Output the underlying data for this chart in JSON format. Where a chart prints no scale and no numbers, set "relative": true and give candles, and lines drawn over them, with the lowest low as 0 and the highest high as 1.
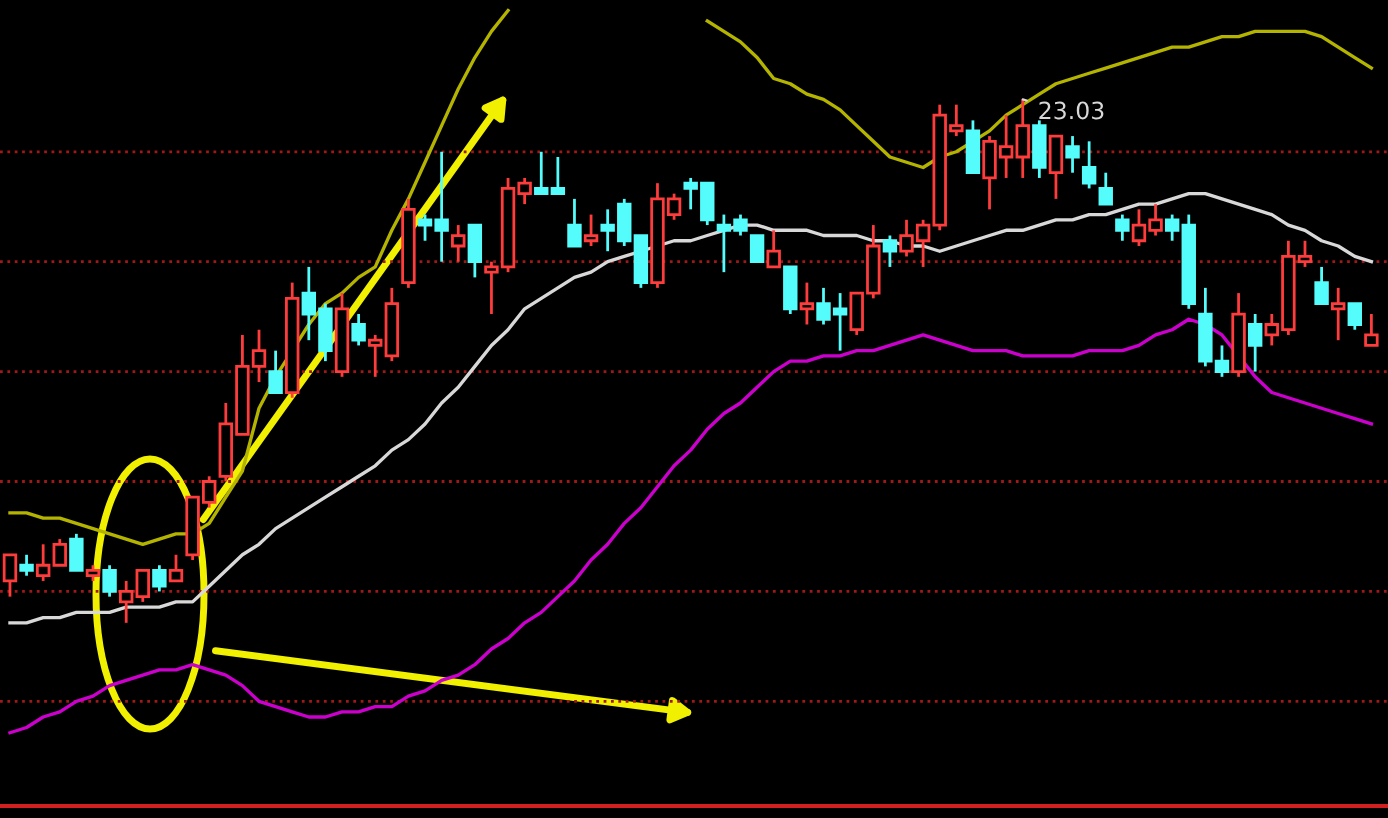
{
  "chart_data": {
    "type": "candlestick",
    "relative": true,
    "categories": [
      null,
      null,
      null,
      null,
      null,
      null,
      null,
      null,
      null,
      null,
      null,
      null,
      null,
      null,
      null,
      null,
      null,
      null,
      null,
      null,
      null,
      null,
      null,
      null,
      null,
      null,
      null,
      null,
      null,
      null,
      null,
      null,
      null,
      null,
      null,
      null,
      null,
      null,
      null,
      null,
      null,
      null,
      null,
      null,
      null,
      null,
      null,
      null,
      null,
      null,
      null,
      null,
      null,
      null,
      null,
      null,
      null,
      null,
      null,
      null,
      null,
      null,
      null,
      null,
      null,
      null,
      null,
      null,
      null,
      null,
      null,
      null,
      null,
      null,
      null,
      null,
      null,
      null,
      null,
      null,
      null,
      null,
      null
    ],
    "ohlc": [
      [
        0.08,
        0.13,
        0.05,
        0.13
      ],
      [
        0.11,
        0.13,
        0.09,
        0.1
      ],
      [
        0.09,
        0.15,
        0.08,
        0.11
      ],
      [
        0.11,
        0.16,
        0.11,
        0.15
      ],
      [
        0.16,
        0.17,
        0.1,
        0.1
      ],
      [
        0.09,
        0.11,
        0.08,
        0.1
      ],
      [
        0.1,
        0.11,
        0.05,
        0.06
      ],
      [
        0.04,
        0.08,
        0,
        0.06
      ],
      [
        0.05,
        0.1,
        0.04,
        0.1
      ],
      [
        0.1,
        0.11,
        0.06,
        0.07
      ],
      [
        0.08,
        0.13,
        0.08,
        0.1
      ],
      [
        0.13,
        0.24,
        0.12,
        0.24
      ],
      [
        0.23,
        0.28,
        0.22,
        0.27
      ],
      [
        0.28,
        0.42,
        0.27,
        0.38
      ],
      [
        0.36,
        0.55,
        0.36,
        0.49
      ],
      [
        0.49,
        0.56,
        0.46,
        0.52
      ],
      [
        0.48,
        0.52,
        0.44,
        0.44
      ],
      [
        0.44,
        0.65,
        0.43,
        0.62
      ],
      [
        0.63,
        0.68,
        0.54,
        0.59
      ],
      [
        0.6,
        0.61,
        0.5,
        0.52
      ],
      [
        0.48,
        0.63,
        0.47,
        0.6
      ],
      [
        0.57,
        0.59,
        0.53,
        0.54
      ],
      [
        0.53,
        0.55,
        0.47,
        0.54
      ],
      [
        0.51,
        0.64,
        0.5,
        0.61
      ],
      [
        0.65,
        0.81,
        0.64,
        0.79
      ],
      [
        0.77,
        0.78,
        0.73,
        0.76
      ],
      [
        0.77,
        0.9,
        0.69,
        0.75
      ],
      [
        0.72,
        0.76,
        0.69,
        0.74
      ],
      [
        0.76,
        0.76,
        0.66,
        0.69
      ],
      [
        0.67,
        0.69,
        0.59,
        0.68
      ],
      [
        0.68,
        0.85,
        0.67,
        0.83
      ],
      [
        0.82,
        0.85,
        0.8,
        0.84
      ],
      [
        0.83,
        0.9,
        0.82,
        0.82
      ],
      [
        0.83,
        0.89,
        0.82,
        0.82
      ],
      [
        0.76,
        0.81,
        0.72,
        0.72
      ],
      [
        0.73,
        0.78,
        0.72,
        0.74
      ],
      [
        0.76,
        0.79,
        0.71,
        0.75
      ],
      [
        0.8,
        0.81,
        0.72,
        0.73
      ],
      [
        0.74,
        0.74,
        0.64,
        0.65
      ],
      [
        0.65,
        0.84,
        0.64,
        0.81
      ],
      [
        0.78,
        0.82,
        0.77,
        0.81
      ],
      [
        0.84,
        0.85,
        0.79,
        0.83
      ],
      [
        0.84,
        0.84,
        0.76,
        0.77
      ],
      [
        0.76,
        0.78,
        0.67,
        0.75
      ],
      [
        0.77,
        0.78,
        0.74,
        0.75
      ],
      [
        0.74,
        0.74,
        0.69,
        0.69
      ],
      [
        0.68,
        0.75,
        0.68,
        0.71
      ],
      [
        0.68,
        0.68,
        0.59,
        0.6
      ],
      [
        0.6,
        0.65,
        0.57,
        0.61
      ],
      [
        0.61,
        0.64,
        0.57,
        0.58
      ],
      [
        0.6,
        0.63,
        0.52,
        0.59
      ],
      [
        0.56,
        0.63,
        0.55,
        0.63
      ],
      [
        0.63,
        0.76,
        0.62,
        0.72
      ],
      [
        0.73,
        0.74,
        0.68,
        0.71
      ],
      [
        0.71,
        0.77,
        0.7,
        0.74
      ],
      [
        0.73,
        0.77,
        0.68,
        0.76
      ],
      [
        0.76,
        0.99,
        0.75,
        0.97
      ],
      [
        0.94,
        0.99,
        0.93,
        0.95
      ],
      [
        0.94,
        0.96,
        0.86,
        0.86
      ],
      [
        0.85,
        0.93,
        0.79,
        0.92
      ],
      [
        0.89,
        0.97,
        0.85,
        0.91
      ],
      [
        0.89,
        1,
        0.85,
        0.95
      ],
      [
        0.95,
        0.96,
        0.85,
        0.87
      ],
      [
        0.86,
        0.93,
        0.81,
        0.93
      ],
      [
        0.91,
        0.93,
        0.86,
        0.89
      ],
      [
        0.87,
        0.92,
        0.83,
        0.84
      ],
      [
        0.83,
        0.86,
        0.8,
        0.8
      ],
      [
        0.77,
        0.78,
        0.73,
        0.75
      ],
      [
        0.73,
        0.79,
        0.72,
        0.76
      ],
      [
        0.75,
        0.8,
        0.74,
        0.77
      ],
      [
        0.77,
        0.78,
        0.73,
        0.75
      ],
      [
        0.76,
        0.78,
        0.6,
        0.61
      ],
      [
        0.59,
        0.64,
        0.49,
        0.5
      ],
      [
        0.5,
        0.53,
        0.47,
        0.48
      ],
      [
        0.48,
        0.63,
        0.47,
        0.59
      ],
      [
        0.57,
        0.59,
        0.48,
        0.53
      ],
      [
        0.55,
        0.59,
        0.53,
        0.57
      ],
      [
        0.56,
        0.73,
        0.55,
        0.7
      ],
      [
        0.69,
        0.73,
        0.68,
        0.7
      ],
      [
        0.65,
        0.68,
        0.61,
        0.61
      ],
      [
        0.6,
        0.64,
        0.54,
        0.61
      ],
      [
        0.61,
        0.61,
        0.56,
        0.57
      ],
      [
        0.53,
        0.59,
        0.53,
        0.55
      ]
    ],
    "colors": [
      "#ff3c3c",
      "#54fcfc",
      "#ff3c3c",
      "#ff3c3c",
      "#54fcfc",
      "#ff3c3c",
      "#54fcfc",
      "#ff3c3c",
      "#ff3c3c",
      "#54fcfc",
      "#ff3c3c",
      "#ff3c3c",
      "#ff3c3c",
      "#ff3c3c",
      "#ff3c3c",
      "#ff3c3c",
      "#54fcfc",
      "#ff3c3c",
      "#54fcfc",
      "#54fcfc",
      "#ff3c3c",
      "#54fcfc",
      "#ff3c3c",
      "#ff3c3c",
      "#ff3c3c",
      "#54fcfc",
      "#54fcfc",
      "#ff3c3c",
      "#54fcfc",
      "#ff3c3c",
      "#ff3c3c",
      "#ff3c3c",
      "#54fcfc",
      "#54fcfc",
      "#54fcfc",
      "#ff3c3c",
      "#54fcfc",
      "#54fcfc",
      "#54fcfc",
      "#ff3c3c",
      "#ff3c3c",
      "#54fcfc",
      "#54fcfc",
      "#54fcfc",
      "#54fcfc",
      "#54fcfc",
      "#ff3c3c",
      "#54fcfc",
      "#ff3c3c",
      "#54fcfc",
      "#54fcfc",
      "#ff3c3c",
      "#ff3c3c",
      "#54fcfc",
      "#ff3c3c",
      "#ff3c3c",
      "#ff3c3c",
      "#ff3c3c",
      "#54fcfc",
      "#ff3c3c",
      "#ff3c3c",
      "#ff3c3c",
      "#54fcfc",
      "#ff3c3c",
      "#54fcfc",
      "#54fcfc",
      "#54fcfc",
      "#54fcfc",
      "#ff3c3c",
      "#ff3c3c",
      "#54fcfc",
      "#54fcfc",
      "#54fcfc",
      "#54fcfc",
      "#ff3c3c",
      "#54fcfc",
      "#ff3c3c",
      "#ff3c3c",
      "#ff3c3c",
      "#54fcfc",
      "#ff3c3c",
      "#54fcfc",
      "#ff3c3c"
    ],
    "series": [
      {
        "type": "line",
        "color": "#b4b400",
        "values": [
          0.21,
          0.21,
          0.2,
          0.2,
          0.19,
          0.18,
          0.17,
          0.16,
          0.15,
          0.16,
          0.17,
          0.17,
          0.19,
          0.24,
          0.29,
          0.41,
          0.47,
          0.52,
          0.57,
          0.61,
          0.63,
          0.66,
          0.68,
          0.75,
          0.81,
          0.88,
          0.95,
          1.02,
          1.08,
          1.13,
          1.17,
          null,
          null,
          null,
          null,
          null,
          null,
          null,
          null,
          null,
          null,
          null,
          1.15,
          1.13,
          1.11,
          1.08,
          1.04,
          1.03,
          1.01,
          1.0,
          0.98,
          0.95,
          0.92,
          0.89,
          0.88,
          0.87,
          0.89,
          0.9,
          0.92,
          0.94,
          0.97,
          0.99,
          1.01,
          1.03,
          1.04,
          1.05,
          1.06,
          1.07,
          1.08,
          1.09,
          1.1,
          1.1,
          1.11,
          1.12,
          1.12,
          1.13,
          1.13,
          1.13,
          1.13,
          1.12,
          1.1,
          1.08,
          1.06
        ]
      },
      {
        "type": "line",
        "color": "#d8d8d8",
        "values": [
          0,
          0,
          0.01,
          0.01,
          0.02,
          0.02,
          0.02,
          0.03,
          0.03,
          0.03,
          0.04,
          0.04,
          0.07,
          0.1,
          0.13,
          0.15,
          0.18,
          0.2,
          0.22,
          0.24,
          0.26,
          0.28,
          0.3,
          0.33,
          0.35,
          0.38,
          0.42,
          0.45,
          0.49,
          0.53,
          0.56,
          0.6,
          0.62,
          0.64,
          0.66,
          0.67,
          0.69,
          0.7,
          0.71,
          0.72,
          0.73,
          0.73,
          0.74,
          0.75,
          0.76,
          0.76,
          0.75,
          0.75,
          0.75,
          0.74,
          0.74,
          0.74,
          0.73,
          0.73,
          0.72,
          0.72,
          0.71,
          0.72,
          0.73,
          0.74,
          0.75,
          0.75,
          0.76,
          0.77,
          0.77,
          0.78,
          0.78,
          0.79,
          0.8,
          0.8,
          0.81,
          0.82,
          0.82,
          0.81,
          0.8,
          0.79,
          0.78,
          0.76,
          0.75,
          0.73,
          0.72,
          0.7,
          0.69
        ]
      },
      {
        "type": "line",
        "color": "#cc00cc",
        "values": [
          -0.21,
          -0.2,
          -0.18,
          -0.17,
          -0.15,
          -0.14,
          -0.12,
          -0.11,
          -0.1,
          -0.09,
          -0.09,
          -0.08,
          -0.09,
          -0.1,
          -0.12,
          -0.15,
          -0.16,
          -0.17,
          -0.18,
          -0.18,
          -0.17,
          -0.17,
          -0.16,
          -0.16,
          -0.14,
          -0.13,
          -0.11,
          -0.1,
          -0.08,
          -0.05,
          -0.03,
          0,
          0.02,
          0.05,
          0.08,
          0.12,
          0.15,
          0.19,
          0.22,
          0.26,
          0.3,
          0.33,
          0.37,
          0.4,
          0.42,
          0.45,
          0.48,
          0.5,
          0.5,
          0.51,
          0.51,
          0.52,
          0.52,
          0.53,
          0.54,
          0.55,
          0.54,
          0.53,
          0.52,
          0.52,
          0.52,
          0.51,
          0.51,
          0.51,
          0.51,
          0.52,
          0.52,
          0.52,
          0.53,
          0.55,
          0.56,
          0.58,
          0.57,
          0.55,
          0.51,
          0.47,
          0.44,
          0.43,
          0.42,
          0.41,
          0.4,
          0.39,
          0.38
        ]
      }
    ],
    "ref_lines": [
      {
        "axis": "y",
        "value": 0.9,
        "color": "#a01818",
        "line_style": "dotted"
      },
      {
        "axis": "y",
        "value": 0.69,
        "color": "#a01818",
        "line_style": "dotted"
      },
      {
        "axis": "y",
        "value": 0.48,
        "color": "#a01818",
        "line_style": "dotted"
      },
      {
        "axis": "y",
        "value": 0.27,
        "color": "#a01818",
        "line_style": "dotted"
      },
      {
        "axis": "y",
        "value": 0.06,
        "color": "#a01818",
        "line_style": "dotted"
      },
      {
        "axis": "y",
        "value": -0.15,
        "color": "#a01818",
        "line_style": "dotted"
      }
    ],
    "annotations": [
      "23.03"
    ]
  }
}
